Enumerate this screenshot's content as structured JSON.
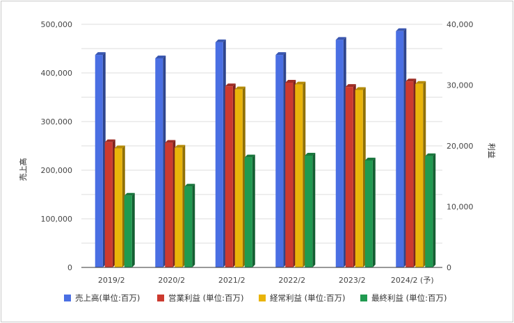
{
  "chart_data": {
    "type": "bar",
    "categories": [
      "2019/2",
      "2020/2",
      "2021/2",
      "2022/2",
      "2023/2",
      "2024/2 (予)"
    ],
    "left_axis": {
      "label": "売上高",
      "ylim": [
        0,
        500000
      ],
      "ticks": [
        "0",
        "100,000",
        "200,000",
        "300,000",
        "400,000",
        "500,000"
      ]
    },
    "right_axis": {
      "label": "利益",
      "ylim": [
        0,
        40000
      ],
      "ticks": [
        "0",
        "10,000",
        "20,000",
        "30,000",
        "40,000"
      ]
    },
    "series": [
      {
        "name": "売上高(単位:百万)",
        "axis": "left",
        "color": "#4a6fe3",
        "values": [
          437000,
          430000,
          463000,
          437000,
          468000,
          486000
        ]
      },
      {
        "name": "営業利益 (単位:百万)",
        "axis": "right",
        "color": "#cc3a2f",
        "values": [
          20600,
          20500,
          29800,
          30400,
          29700,
          30600
        ]
      },
      {
        "name": "経常利益 (単位:百万)",
        "axis": "right",
        "color": "#e9b40a",
        "values": [
          19600,
          19700,
          29300,
          30100,
          29200,
          30200
        ]
      },
      {
        "name": "最終利益 (単位:百万)",
        "axis": "right",
        "color": "#209a50",
        "values": [
          11800,
          13300,
          18100,
          18400,
          17600,
          18300
        ]
      }
    ],
    "grid": true,
    "legend_position": "bottom"
  }
}
